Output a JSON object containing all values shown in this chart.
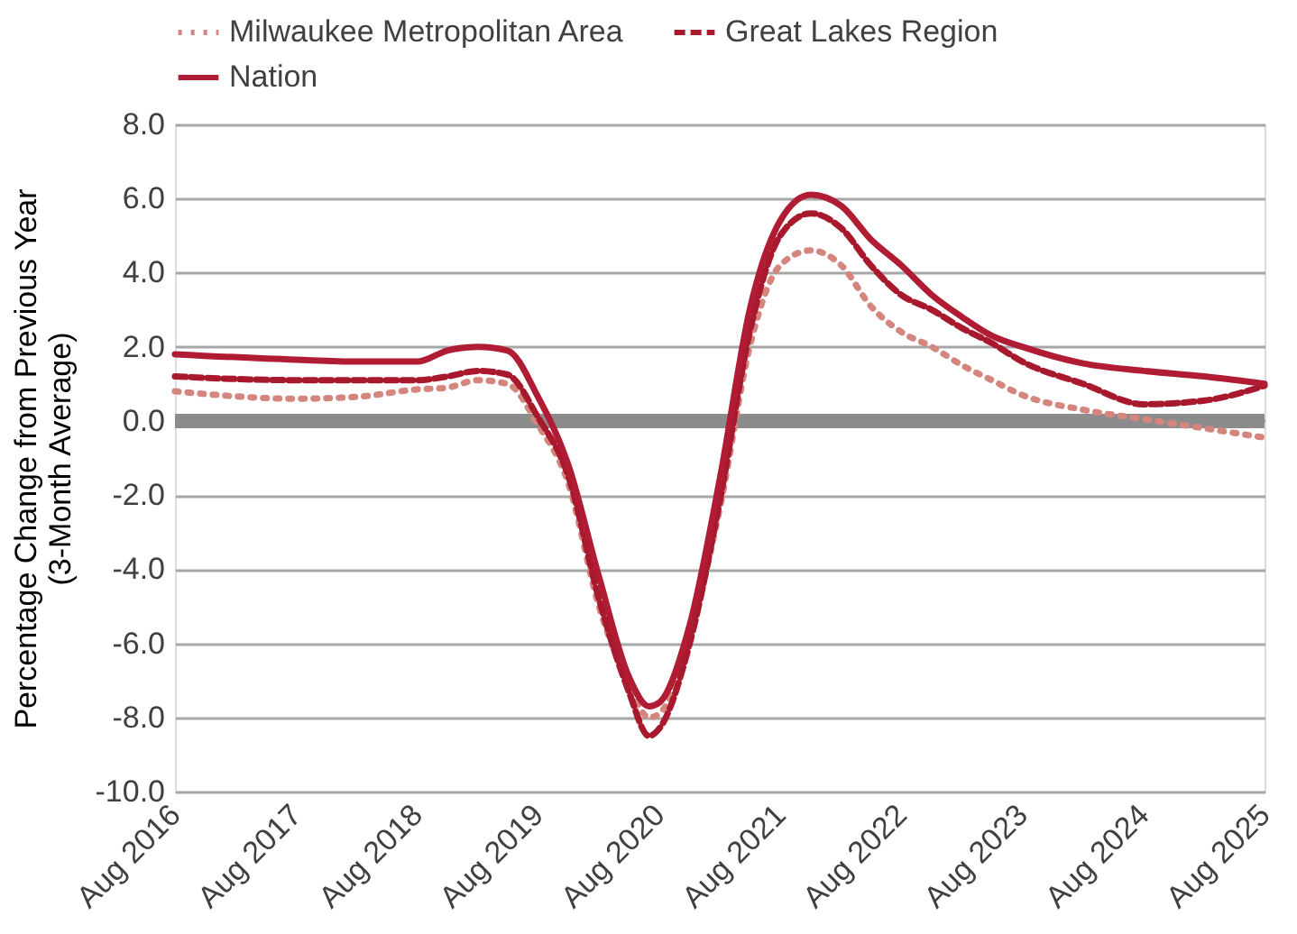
{
  "chart_data": {
    "type": "line",
    "ylabel": "Percentage Change from Previous Year\n(3-Month Average)",
    "x": [
      "2016-08",
      "2017-08",
      "2018-02",
      "2018-08",
      "2018-11",
      "2019-02",
      "2019-05",
      "2019-08",
      "2019-11",
      "2020-02",
      "2020-05",
      "2020-07",
      "2020-08",
      "2020-11",
      "2021-02",
      "2021-05",
      "2021-08",
      "2021-11",
      "2022-02",
      "2022-05",
      "2022-08",
      "2022-11",
      "2023-02",
      "2023-05",
      "2023-08",
      "2024-02",
      "2024-08",
      "2025-02",
      "2025-08"
    ],
    "series": [
      {
        "name": "Milwaukee Metropolitan Area",
        "color": "#d4857e",
        "line_style": "dotted",
        "values": [
          0.8,
          0.6,
          0.65,
          0.85,
          0.9,
          1.1,
          1.0,
          -0.1,
          -1.7,
          -5.0,
          -7.1,
          -8.0,
          -7.9,
          -5.8,
          -2.3,
          2.0,
          4.2,
          4.6,
          4.2,
          3.1,
          2.4,
          2.0,
          1.5,
          1.1,
          0.7,
          0.3,
          0.05,
          -0.2,
          -0.45
        ]
      },
      {
        "name": "Great Lakes Region",
        "color": "#a8192e",
        "line_style": "dashed",
        "values": [
          1.2,
          1.1,
          1.1,
          1.1,
          1.2,
          1.35,
          1.25,
          0.1,
          -1.5,
          -4.8,
          -7.3,
          -8.5,
          -8.3,
          -6.0,
          -2.1,
          2.4,
          5.0,
          5.6,
          5.2,
          4.2,
          3.4,
          3.0,
          2.5,
          2.1,
          1.6,
          1.0,
          0.45,
          0.55,
          0.95
        ]
      },
      {
        "name": "Nation",
        "color": "#b01c33",
        "line_style": "solid",
        "values": [
          1.8,
          1.65,
          1.6,
          1.6,
          1.9,
          2.0,
          1.9,
          0.65,
          -1.2,
          -4.2,
          -6.9,
          -7.7,
          -7.6,
          -5.5,
          -1.5,
          3.0,
          5.4,
          6.1,
          5.8,
          4.9,
          4.2,
          3.4,
          2.8,
          2.3,
          2.0,
          1.55,
          1.35,
          1.2,
          1.0
        ]
      }
    ],
    "xlim": [
      "2016-08",
      "2025-08"
    ],
    "xticks": [
      {
        "value": "2016-08",
        "label": "Aug 2016"
      },
      {
        "value": "2017-08",
        "label": "Aug 2017"
      },
      {
        "value": "2018-08",
        "label": "Aug 2018"
      },
      {
        "value": "2019-08",
        "label": "Aug 2019"
      },
      {
        "value": "2020-08",
        "label": "Aug 2020"
      },
      {
        "value": "2021-08",
        "label": "Aug 2021"
      },
      {
        "value": "2022-08",
        "label": "Aug 2022"
      },
      {
        "value": "2023-08",
        "label": "Aug 2023"
      },
      {
        "value": "2024-08",
        "label": "Aug 2024"
      },
      {
        "value": "2025-08",
        "label": "Aug 2025"
      }
    ],
    "ylim": [
      -10,
      8
    ],
    "yticks": [
      {
        "value": -10,
        "label": "-10.0"
      },
      {
        "value": -8,
        "label": "-8.0"
      },
      {
        "value": -6,
        "label": "-6.0"
      },
      {
        "value": -4,
        "label": "-4.0"
      },
      {
        "value": -2,
        "label": "-2.0"
      },
      {
        "value": 0,
        "label": "0.0"
      },
      {
        "value": 2,
        "label": "2.0"
      },
      {
        "value": 4,
        "label": "4.0"
      },
      {
        "value": 6,
        "label": "6.0"
      },
      {
        "value": 8,
        "label": "8.0"
      }
    ],
    "ref_lines": [
      {
        "axis": "y",
        "value": 0,
        "color": "#8c8c8c"
      }
    ],
    "grid": "y",
    "legend": "top",
    "marker": "none"
  }
}
